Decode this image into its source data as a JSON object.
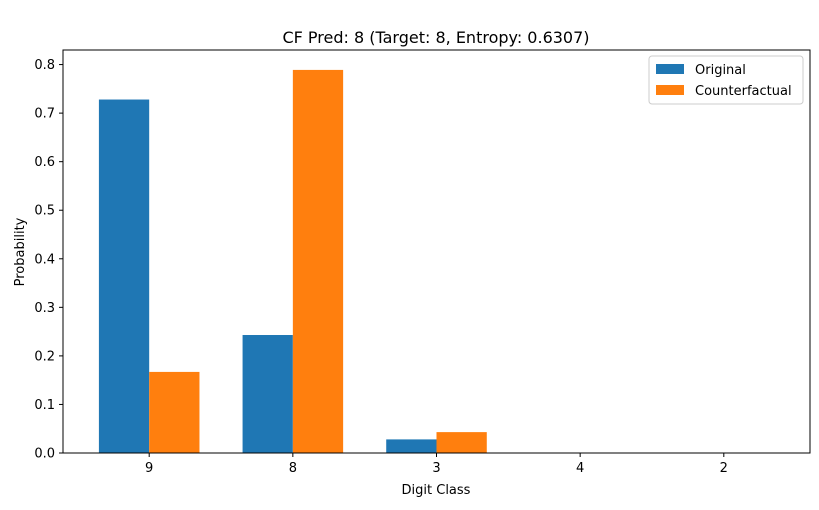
{
  "chart_data": {
    "type": "bar",
    "title": "CF Pred: 8 (Target: 8, Entropy: 0.6307)",
    "xlabel": "Digit Class",
    "ylabel": "Probability",
    "categories": [
      "9",
      "8",
      "3",
      "4",
      "2"
    ],
    "series": [
      {
        "name": "Original",
        "color": "#1f77b4",
        "values": [
          0.728,
          0.243,
          0.028,
          0.001,
          0.0
        ]
      },
      {
        "name": "Counterfactual",
        "color": "#ff7f0e",
        "values": [
          0.167,
          0.789,
          0.043,
          0.001,
          0.0
        ]
      }
    ],
    "ylim": [
      0,
      0.83
    ],
    "yticks": [
      0.0,
      0.1,
      0.2,
      0.3,
      0.4,
      0.5,
      0.6,
      0.7,
      0.8
    ],
    "ytick_labels": [
      "0.0",
      "0.1",
      "0.2",
      "0.3",
      "0.4",
      "0.5",
      "0.6",
      "0.7",
      "0.8"
    ],
    "grid": false,
    "legend_position": "top-right"
  }
}
